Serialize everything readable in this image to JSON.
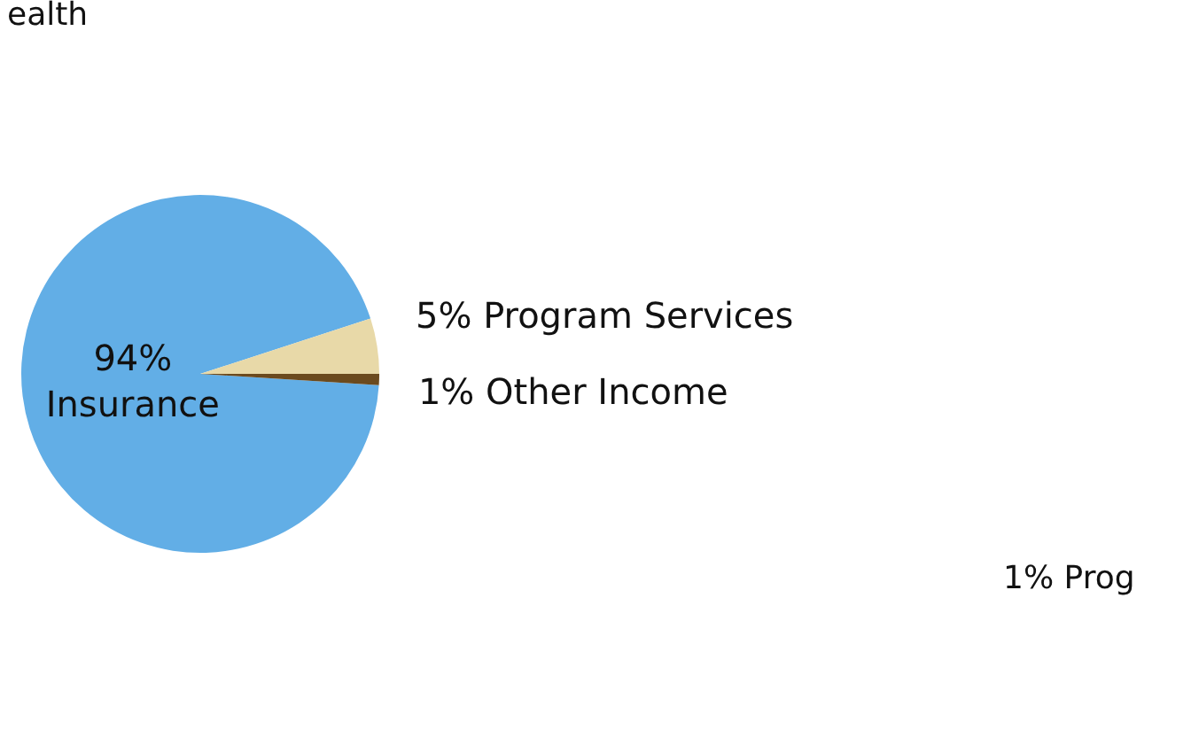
{
  "chart_data": {
    "type": "pie",
    "title": "ealth",
    "categories": [
      "Insurance",
      "Program Services",
      "Other Income"
    ],
    "values": [
      94,
      5,
      1
    ],
    "value_labels": [
      "94%",
      "5%",
      "1%"
    ],
    "colors": [
      "#62aee6",
      "#e8d9a8",
      "#6b4a1e"
    ],
    "annotations": [
      "1% Prog"
    ]
  }
}
